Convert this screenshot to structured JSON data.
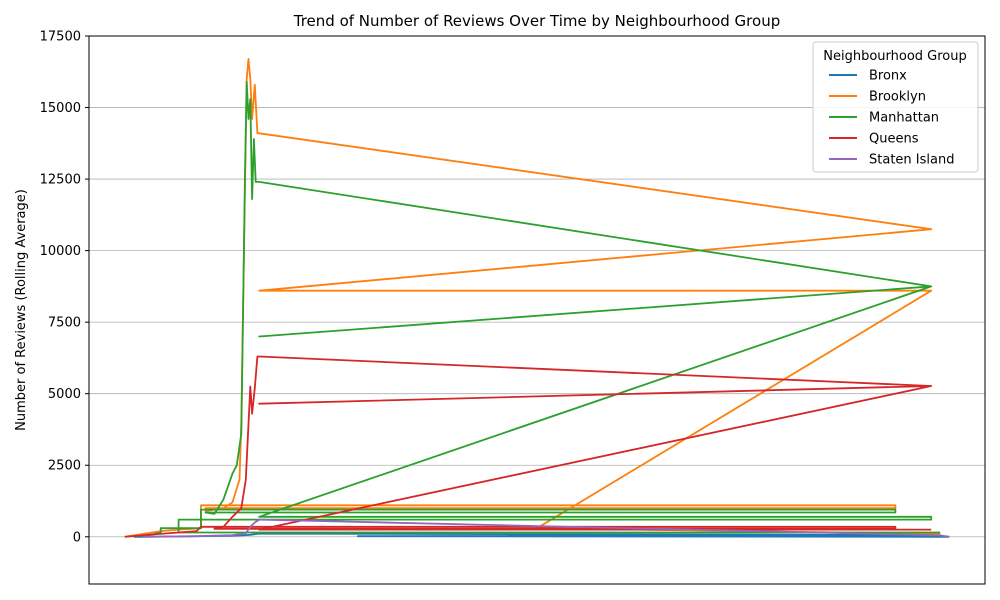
{
  "chart_data": {
    "type": "line",
    "title": "Trend of Number of Reviews Over Time by Neighbourhood Group",
    "xlabel": "",
    "ylabel": "Number of Reviews (Rolling Average)",
    "ylim": [
      -1650,
      17500
    ],
    "xlim": [
      0,
      1
    ],
    "grid": "horizontal",
    "legend_position": "top-right",
    "legend_title": "Neighbourhood Group",
    "y_ticks": [
      0,
      2500,
      5000,
      7500,
      10000,
      12500,
      15000,
      17500
    ],
    "y_tick_labels": [
      "0",
      "2500",
      "5000",
      "7500",
      "10000",
      "12500",
      "15000",
      "17500"
    ],
    "series": [
      {
        "name": "Bronx",
        "color": "#1f77b4",
        "x": [
          0.05,
          0.1,
          0.15,
          0.17,
          0.18,
          0.185,
          0.19,
          0.95,
          0.3,
          0.96
        ],
        "y": [
          0,
          10,
          30,
          50,
          70,
          90,
          110,
          60,
          20,
          0
        ]
      },
      {
        "name": "Brooklyn",
        "color": "#ff7f0e",
        "x": [
          0.04,
          0.08,
          0.1,
          0.125,
          0.125,
          0.9,
          0.9,
          0.13,
          0.13,
          0.15,
          0.16,
          0.168,
          0.17,
          0.172,
          0.174,
          0.176,
          0.178,
          0.18,
          0.182,
          0.185,
          0.188,
          0.19,
          0.19,
          0.94,
          0.19,
          0.19,
          0.94,
          0.5,
          0.95
        ],
        "y": [
          0,
          200,
          250,
          300,
          1100,
          1100,
          1000,
          1000,
          900,
          1000,
          1200,
          2000,
          4000,
          8000,
          12000,
          16000,
          16700,
          16000,
          14600,
          15800,
          14100,
          14100,
          14100,
          10750,
          8600,
          8600,
          8600,
          300,
          100
        ]
      },
      {
        "name": "Manhattan",
        "color": "#2ca02c",
        "x": [
          0.06,
          0.08,
          0.08,
          0.125,
          0.125,
          0.9,
          0.9,
          0.13,
          0.14,
          0.15,
          0.16,
          0.165,
          0.17,
          0.172,
          0.174,
          0.176,
          0.178,
          0.18,
          0.182,
          0.184,
          0.186,
          0.188,
          0.19,
          0.94,
          0.19,
          0.94,
          0.19,
          0.94,
          0.94,
          0.1,
          0.1,
          0.95
        ],
        "y": [
          0,
          150,
          300,
          300,
          950,
          950,
          850,
          850,
          800,
          1300,
          2200,
          2500,
          3600,
          8000,
          12500,
          15900,
          14600,
          15300,
          11800,
          13900,
          12400,
          12400,
          12400,
          8750,
          7000,
          8750,
          700,
          700,
          600,
          600,
          150,
          150
        ]
      },
      {
        "name": "Queens",
        "color": "#d62728",
        "x": [
          0.04,
          0.07,
          0.1,
          0.12,
          0.125,
          0.9,
          0.9,
          0.14,
          0.15,
          0.16,
          0.17,
          0.175,
          0.18,
          0.182,
          0.185,
          0.188,
          0.19,
          0.94,
          0.19,
          0.94,
          0.19,
          0.94
        ],
        "y": [
          0,
          80,
          150,
          200,
          350,
          350,
          280,
          280,
          350,
          700,
          1000,
          2000,
          5250,
          4300,
          5200,
          6300,
          6300,
          5270,
          4650,
          5270,
          250,
          250
        ]
      },
      {
        "name": "Staten Island",
        "color": "#9467bd",
        "x": [
          0.06,
          0.12,
          0.16,
          0.175,
          0.18,
          0.185,
          0.19,
          0.95,
          0.96
        ],
        "y": [
          0,
          20,
          60,
          120,
          350,
          500,
          600,
          50,
          0
        ]
      }
    ]
  }
}
